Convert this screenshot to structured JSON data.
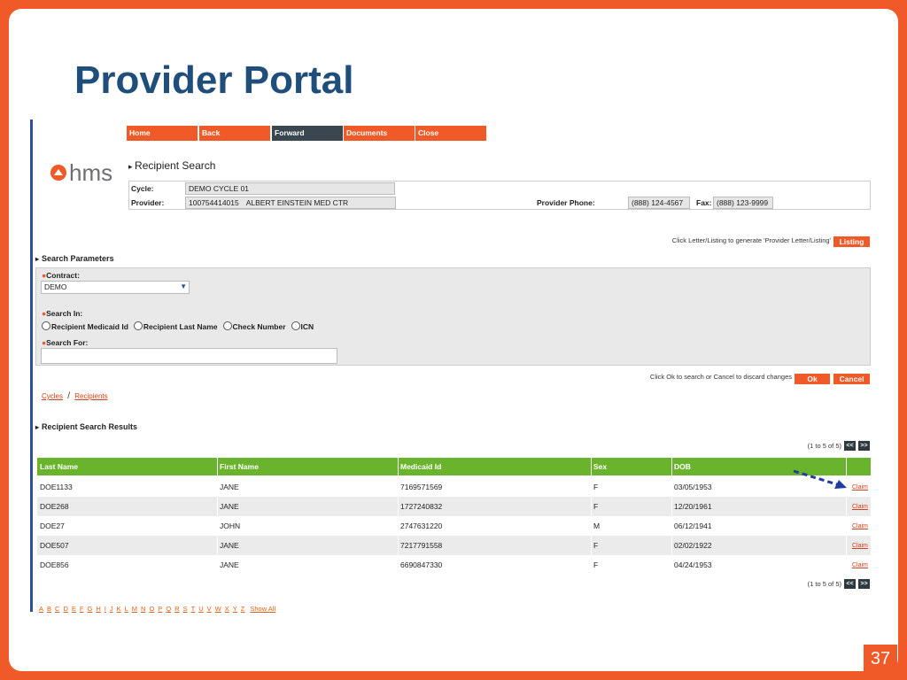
{
  "slide": {
    "title": "Provider Portal",
    "page_number": 37
  },
  "nav": [
    "Home",
    "Back",
    "Forward",
    "Documents",
    "Close"
  ],
  "logo": "hms",
  "section_title": "Recipient Search",
  "info": {
    "cycle_label": "Cycle:",
    "cycle": "DEMO CYCLE 01",
    "provider_label": "Provider:",
    "provider_id": "100754414015",
    "provider_name": "ALBERT EINSTEIN MED CTR",
    "phone_label": "Provider Phone:",
    "phone": "(888) 124-4567",
    "fax_label": "Fax:",
    "fax": "(888) 123-9999"
  },
  "listing": {
    "hint": "Click Letter/Listing to generate 'Provider Letter/Listing'",
    "button": "Listing"
  },
  "search": {
    "title": "Search Parameters",
    "contract_label": "Contract:",
    "contract": "DEMO",
    "search_in_label": "Search In:",
    "options": [
      "Recipient Medicaid Id",
      "Recipient Last Name",
      "Check Number",
      "ICN"
    ],
    "search_for_label": "Search For:"
  },
  "actions": {
    "hint": "Click Ok to search or Cancel to discard changes",
    "ok": "Ok",
    "cancel": "Cancel"
  },
  "breadcrumb": {
    "items": [
      "Cycles",
      "Recipients"
    ],
    "separator": "/"
  },
  "results": {
    "title": "Recipient Search Results",
    "pager": "(1 to 5 of 5)",
    "prev": "<<",
    "next": ">>",
    "columns": [
      "Last Name",
      "First Name",
      "Medicaid Id",
      "Sex",
      "DOB"
    ],
    "rows": [
      [
        "DOE1133",
        "JANE",
        "7169571569",
        "F",
        "03/05/1953",
        "Claim"
      ],
      [
        "DOE268",
        "JANE",
        "1727240832",
        "F",
        "12/20/1961",
        "Claim"
      ],
      [
        "DOE27",
        "JOHN",
        "2747631220",
        "M",
        "06/12/1941",
        "Claim"
      ],
      [
        "DOE507",
        "JANE",
        "7217791558",
        "F",
        "02/02/1922",
        "Claim"
      ],
      [
        "DOE856",
        "JANE",
        "6690847330",
        "F",
        "04/24/1953",
        "Claim"
      ]
    ]
  },
  "alphabet": [
    "A",
    "B",
    "C",
    "D",
    "E",
    "F",
    "G",
    "H",
    "I",
    "J",
    "K",
    "L",
    "M",
    "N",
    "O",
    "P",
    "Q",
    "R",
    "S",
    "T",
    "U",
    "V",
    "W",
    "X",
    "Y",
    "Z",
    "Show All"
  ]
}
